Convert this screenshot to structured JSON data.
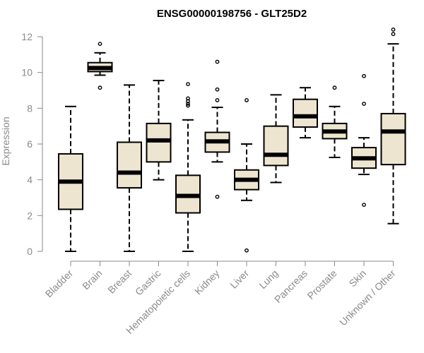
{
  "chart_data": {
    "type": "boxplot",
    "title": "ENSG00000198756 - GLT25D2",
    "ylabel": "Expression",
    "xlabel": "",
    "ylim": [
      0,
      12.5
    ],
    "yticks": [
      0,
      2,
      4,
      6,
      8,
      10,
      12
    ],
    "grid": false,
    "legend": "none",
    "colors": {
      "box_fill": "#ede5cf",
      "stroke": "#000000",
      "axis": "#8a8a8a"
    },
    "categories": [
      "Bladder",
      "Brain",
      "Breast",
      "Gastric",
      "Hematopoietic cells",
      "Kidney",
      "Liver",
      "Lung",
      "Pancreas",
      "Prostate",
      "Skin",
      "Unknown / Other"
    ],
    "boxes": [
      {
        "category": "Bladder",
        "whisker_low": 0.0,
        "q1": 2.35,
        "median": 3.9,
        "q3": 5.45,
        "whisker_high": 8.1,
        "outliers": []
      },
      {
        "category": "Brain",
        "whisker_low": 9.85,
        "q1": 10.05,
        "median": 10.25,
        "q3": 10.55,
        "whisker_high": 11.1,
        "outliers": [
          11.6,
          9.15
        ]
      },
      {
        "category": "Breast",
        "whisker_low": 0.0,
        "q1": 3.55,
        "median": 4.4,
        "q3": 6.1,
        "whisker_high": 9.3,
        "outliers": []
      },
      {
        "category": "Gastric",
        "whisker_low": 4.0,
        "q1": 5.0,
        "median": 6.2,
        "q3": 7.15,
        "whisker_high": 9.55,
        "outliers": []
      },
      {
        "category": "Hematopoietic cells",
        "whisker_low": 0.0,
        "q1": 2.15,
        "median": 3.1,
        "q3": 4.25,
        "whisker_high": 7.35,
        "outliers": [
          9.35,
          8.55,
          8.4,
          8.25,
          8.15
        ]
      },
      {
        "category": "Kidney",
        "whisker_low": 5.0,
        "q1": 5.55,
        "median": 6.15,
        "q3": 6.65,
        "whisker_high": 8.05,
        "outliers": [
          10.6,
          9.05,
          8.45,
          3.05
        ]
      },
      {
        "category": "Liver",
        "whisker_low": 2.85,
        "q1": 3.45,
        "median": 4.0,
        "q3": 4.55,
        "whisker_high": 6.0,
        "outliers": [
          8.45,
          0.05
        ]
      },
      {
        "category": "Lung",
        "whisker_low": 3.85,
        "q1": 4.8,
        "median": 5.4,
        "q3": 7.0,
        "whisker_high": 8.75,
        "outliers": []
      },
      {
        "category": "Pancreas",
        "whisker_low": 6.35,
        "q1": 6.95,
        "median": 7.55,
        "q3": 8.5,
        "whisker_high": 9.15,
        "outliers": []
      },
      {
        "category": "Prostate",
        "whisker_low": 5.25,
        "q1": 6.3,
        "median": 6.7,
        "q3": 7.15,
        "whisker_high": 8.1,
        "outliers": [
          9.15
        ]
      },
      {
        "category": "Skin",
        "whisker_low": 4.3,
        "q1": 4.65,
        "median": 5.2,
        "q3": 5.8,
        "whisker_high": 6.35,
        "outliers": [
          9.8,
          8.25,
          2.6
        ]
      },
      {
        "category": "Unknown / Other",
        "whisker_low": 1.55,
        "q1": 4.85,
        "median": 6.7,
        "q3": 7.7,
        "whisker_high": 11.6,
        "outliers": [
          12.4,
          12.15
        ]
      }
    ]
  }
}
